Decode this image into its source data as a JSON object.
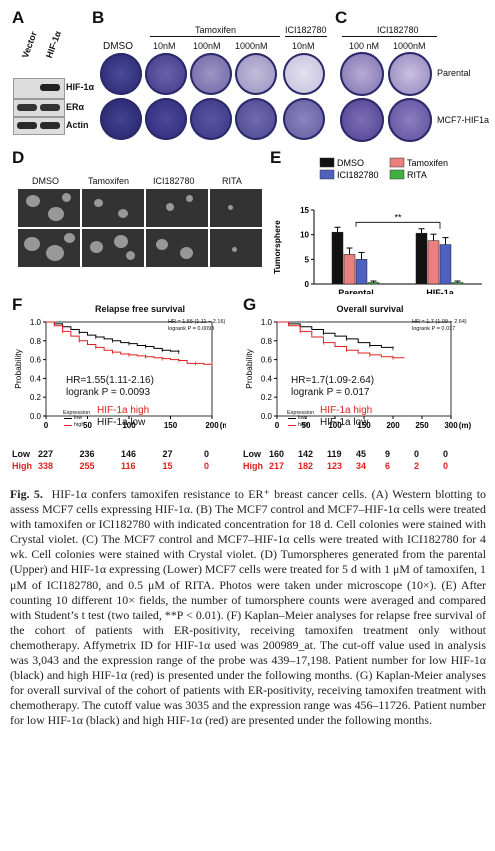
{
  "panels": {
    "A": {
      "letter": "A",
      "lanes": [
        "Vector",
        "HIF-1α"
      ],
      "bands": [
        "HIF-1α",
        "ERα",
        "Actin"
      ]
    },
    "B": {
      "letter": "B",
      "treatment_header": "Tamoxifen",
      "ici_header": "ICI182780",
      "columns": [
        "DMSO",
        "10nM",
        "100nM",
        "1000nM",
        "10nM"
      ]
    },
    "C": {
      "letter": "C",
      "header": "ICI182780",
      "columns": [
        "100 nM",
        "1000nM"
      ],
      "rows": [
        "Parental",
        "MCF7-HIF1a"
      ]
    },
    "D": {
      "letter": "D",
      "columns": [
        "DMSO",
        "Tamoxifen",
        "ICI182780",
        "RITA"
      ]
    },
    "E": {
      "letter": "E",
      "significance": "**",
      "chart_data": {
        "type": "bar",
        "categories": [
          "Parental",
          "HIF-1a"
        ],
        "ylabel": "Tumorsphere",
        "ylim": [
          0,
          15
        ],
        "yticks": [
          0,
          5,
          10,
          15
        ],
        "series": [
          {
            "name": "DMSO",
            "color": "#111111",
            "values": [
              10.5,
              10.3
            ],
            "errors": [
              1.0,
              0.9
            ]
          },
          {
            "name": "Tamoxifen",
            "color": "#e88080",
            "values": [
              6.0,
              8.8
            ],
            "errors": [
              1.3,
              1.3
            ]
          },
          {
            "name": "ICI182780",
            "color": "#5060c0",
            "values": [
              5.0,
              8.0
            ],
            "errors": [
              1.4,
              1.4
            ]
          },
          {
            "name": "RITA",
            "color": "#40b040",
            "values": [
              0.3,
              0.3
            ],
            "errors": [
              0.3,
              0.3
            ]
          }
        ]
      }
    },
    "F": {
      "letter": "F",
      "title": "Relapse free survival",
      "inset": [
        "HR = 1.55 (1.11 − 2.16)",
        "logrank P = 0.0093"
      ],
      "hr": "HR=1.55(1.11-2.16)",
      "p": "logrank P = 0.0093",
      "legend_title": "Expression",
      "legend_items": [
        "low",
        "high"
      ],
      "label_high": "HIF-1a high",
      "label_low": "HIF-1a low",
      "ylabel": "Probability",
      "xunit": "(m)",
      "row_low_label": "Low",
      "row_high_label": "High",
      "chart_data": {
        "type": "line",
        "xlim": [
          0,
          200
        ],
        "ylim": [
          0,
          1
        ],
        "xticks": [
          0,
          50,
          100,
          150,
          200
        ],
        "yticks": [
          0.0,
          0.2,
          0.4,
          0.6,
          0.8,
          1.0
        ],
        "series": [
          {
            "name": "low",
            "color": "#000000",
            "x": [
              0,
              10,
              20,
              30,
              40,
              50,
              60,
              70,
              80,
              90,
              100,
              110,
              120,
              130,
              140,
              150,
              160
            ],
            "y": [
              1.0,
              0.98,
              0.95,
              0.92,
              0.89,
              0.86,
              0.84,
              0.82,
              0.8,
              0.78,
              0.77,
              0.75,
              0.74,
              0.72,
              0.7,
              0.69,
              0.68
            ]
          },
          {
            "name": "high",
            "color": "#e02020",
            "x": [
              0,
              10,
              20,
              30,
              40,
              50,
              60,
              70,
              80,
              90,
              100,
              110,
              120,
              130,
              140,
              150,
              160,
              170,
              180,
              190,
              200
            ],
            "y": [
              1.0,
              0.96,
              0.9,
              0.85,
              0.8,
              0.76,
              0.73,
              0.7,
              0.68,
              0.66,
              0.65,
              0.64,
              0.63,
              0.62,
              0.61,
              0.6,
              0.59,
              0.56,
              0.56,
              0.55,
              0.55
            ]
          }
        ]
      },
      "risk_low": [
        "227",
        "236",
        "146",
        "27",
        "0"
      ],
      "risk_high": [
        "338",
        "255",
        "116",
        "15",
        "0"
      ]
    },
    "G": {
      "letter": "G",
      "title": "Overall survival",
      "inset": [
        "HR = 1.7 (1.09 − 2.64)",
        "logrank P = 0.017"
      ],
      "hr": "HR=1.7(1.09-2.64)",
      "p": "logrank P = 0.017",
      "legend_title": "Expression",
      "legend_items": [
        "low",
        "high"
      ],
      "label_high": "HIF-1a high",
      "label_low": "HIF-1a low",
      "ylabel": "Probability",
      "xunit": "(m)",
      "row_low_label": "Low",
      "row_high_label": "High",
      "chart_data": {
        "type": "line",
        "xlim": [
          0,
          300
        ],
        "ylim": [
          0,
          1
        ],
        "xticks": [
          0,
          50,
          100,
          150,
          200,
          250,
          300
        ],
        "yticks": [
          0.0,
          0.2,
          0.4,
          0.6,
          0.8,
          1.0
        ],
        "series": [
          {
            "name": "low",
            "color": "#000000",
            "x": [
              0,
              20,
              40,
              60,
              80,
              100,
              120,
              140,
              160,
              180,
              200
            ],
            "y": [
              1.0,
              0.98,
              0.95,
              0.92,
              0.88,
              0.85,
              0.82,
              0.78,
              0.75,
              0.73,
              0.72
            ]
          },
          {
            "name": "high",
            "color": "#e02020",
            "x": [
              0,
              20,
              40,
              60,
              80,
              100,
              120,
              140,
              160,
              180,
              200,
              220
            ],
            "y": [
              1.0,
              0.96,
              0.9,
              0.84,
              0.78,
              0.74,
              0.7,
              0.67,
              0.65,
              0.63,
              0.62,
              0.62
            ]
          }
        ]
      },
      "risk_low": [
        "160",
        "142",
        "119",
        "45",
        "9",
        "0",
        "0"
      ],
      "risk_high": [
        "217",
        "182",
        "123",
        "34",
        "6",
        "2",
        "0"
      ]
    }
  },
  "caption": {
    "label": "Fig. 5.",
    "text": "HIF-1α confers tamoxifen resistance to ER⁺ breast cancer cells. (A) Western blotting to assess MCF7 cells expressing HIF-1α. (B) The MCF7 control and MCF7–HIF-1α cells were treated with tamoxifen or ICI182780 with indicated concentration for 18 d. Cell colonies were stained with Crystal violet. (C) The MCF7 control and MCF7–HIF-1α cells were treated with ICI182780 for 4 wk. Cell colonies were stained with Crystal violet. (D) Tumorspheres generated from the parental (Upper) and HIF-1α expressing (Lower) MCF7 cells were treated for 5 d with 1 μM of tamoxifen, 1 μM of ICI182780, and 0.5 μM of RITA. Photos were taken under microscope (10×). (E) After counting 10 different 10× fields, the number of tumorsphere counts were averaged and compared with Student’s t test (two tailed, **P < 0.01). (F) Kaplan–Meier analyses for relapse free survival of the cohort of patients with ER-positivity, receiving tamoxifen treatment only without chemotherapy. Affymetrix ID for HIF-1α used was 200989_at. The cut-off value used in analysis was 3,043 and the expression range of the probe was 439–17,198. Patient number for low HIF-1α (black) and high HIF-1α (red) is presented under the following months. (G) Kaplan-Meier analyses for overall survival of the cohort of patients with ER-positivity, receiving tamoxifen treatment with chemotherapy. The cutoff value was 3035 and the expression range was 456–11726. Patient number for low HIF-1α (black) and high HIF-1α (red) are presented under the following months."
  }
}
